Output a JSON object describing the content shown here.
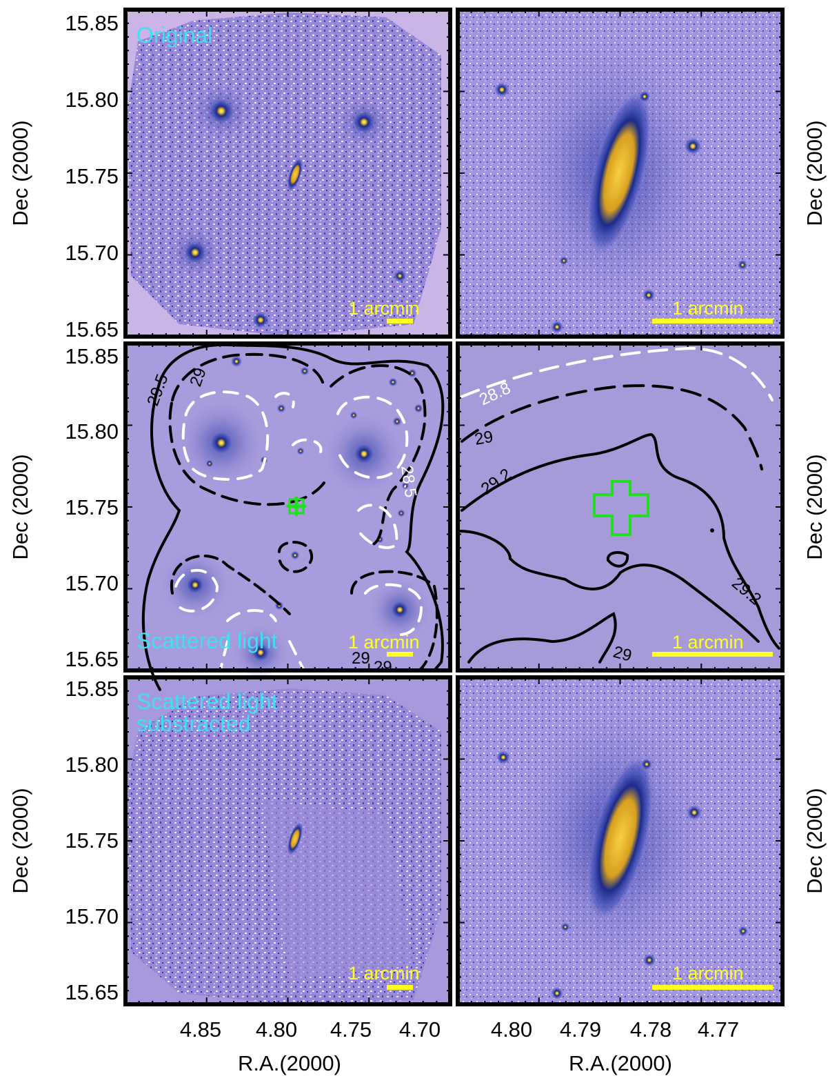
{
  "figure": {
    "panel_titles": {
      "original": "Original",
      "scattered": "Scattered light",
      "subtracted_line1": "Scattered light",
      "subtracted_line2": "substracted"
    },
    "scale_bar_label": "1 arcmin",
    "y_axis_label": "Dec (2000)",
    "x_axis_label": "R.A.(2000)",
    "y_ticks": [
      "15.85",
      "15.80",
      "15.75",
      "15.70",
      "15.65"
    ],
    "x_ticks_left": [
      "4.85",
      "4.80",
      "4.75",
      "4.70"
    ],
    "x_ticks_right": [
      "4.80",
      "4.79",
      "4.78",
      "4.77"
    ],
    "contour_labels_left": [
      "29.5",
      "29",
      "28.5",
      "29",
      "29"
    ],
    "contour_labels_right": [
      "28.8",
      "29",
      "29.2",
      "29.2",
      "29"
    ],
    "colors": {
      "background": "#a898e0",
      "halo": "#1a2a8a",
      "core": "#f0c020",
      "title_text": "#3fe0f0",
      "scale_bar": "#ffff22",
      "marker_cross": "#22dd22"
    }
  }
}
